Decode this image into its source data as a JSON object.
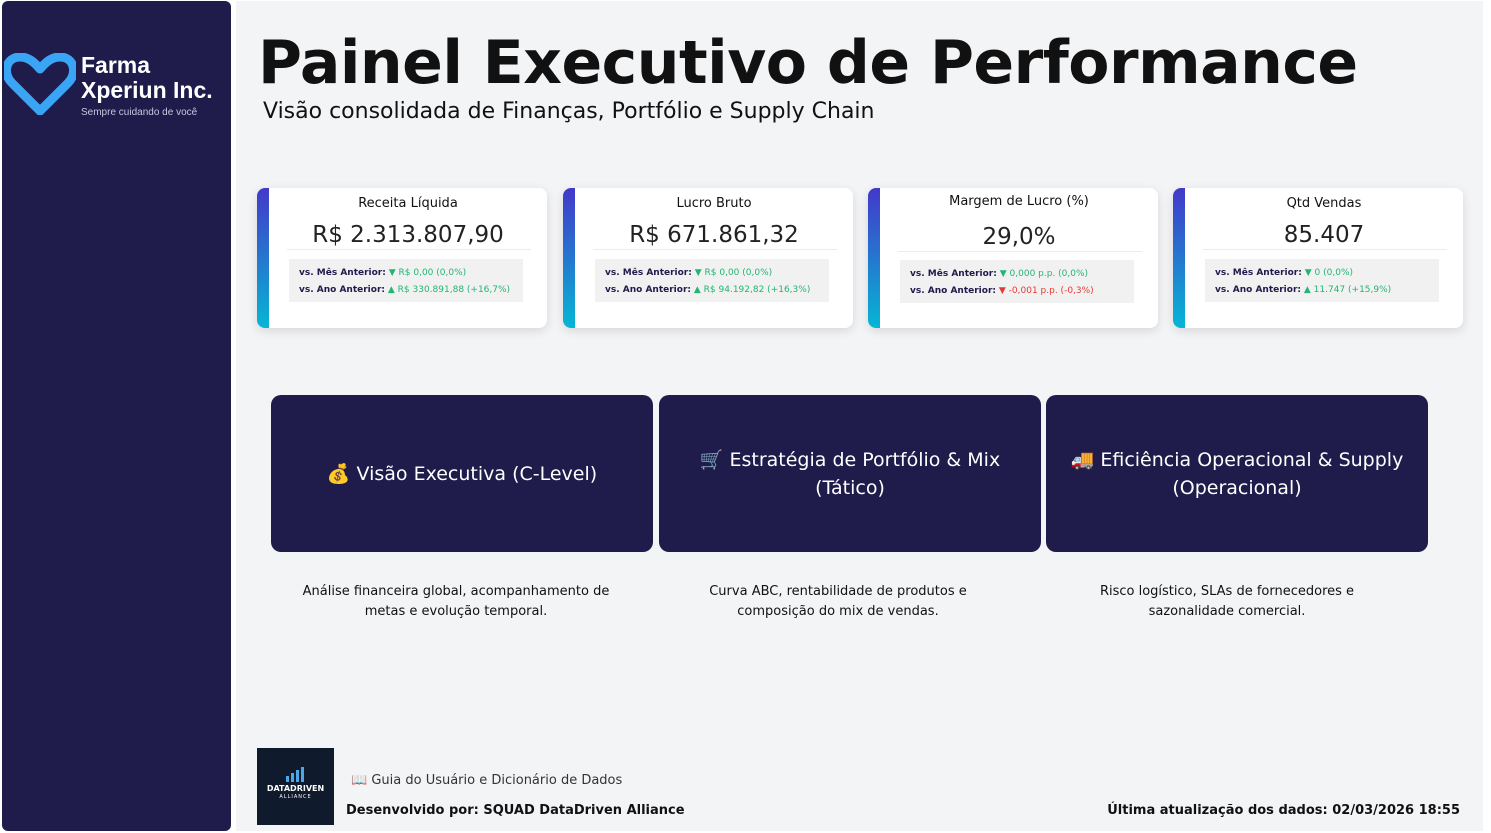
{
  "brand": {
    "line1": "Farma",
    "line2": "Xperiun Inc.",
    "tagline": "Sempre cuidando de você",
    "colors": {
      "sidebar": "#1f1b4b",
      "accent_top": "#4338ca",
      "accent_bottom": "#06b6d4",
      "heart": "#3aa4f5"
    }
  },
  "header": {
    "title": "Painel Executivo de Performance",
    "subtitle": "Visão consolidada de Finanças, Portfólio e Supply Chain"
  },
  "kpis": [
    {
      "name": "Receita Líquida",
      "value": "R$ 2.313.807,90",
      "mom_label": "vs. Mês Anterior:",
      "mom_arrow": "▼",
      "mom_value": "R$ 0,00 (0,0%)",
      "mom_trend": "up",
      "yoy_label": "vs. Ano Anterior:",
      "yoy_arrow": "▲",
      "yoy_value": "R$ 330.891,88 (+16,7%)",
      "yoy_trend": "up"
    },
    {
      "name": "Lucro Bruto",
      "value": "R$ 671.861,32",
      "mom_label": "vs. Mês Anterior:",
      "mom_arrow": "▼",
      "mom_value": "R$ 0,00 (0,0%)",
      "mom_trend": "up",
      "yoy_label": "vs. Ano Anterior:",
      "yoy_arrow": "▲",
      "yoy_value": "R$ 94.192,82 (+16,3%)",
      "yoy_trend": "up"
    },
    {
      "name": "Margem de Lucro (%)",
      "value": "29,0%",
      "mom_label": "vs. Mês Anterior:",
      "mom_arrow": "▼",
      "mom_value": "0,000 p.p. (0,0%)",
      "mom_trend": "up",
      "yoy_label": "vs. Ano Anterior:",
      "yoy_arrow": "▼",
      "yoy_value": "-0,001 p.p. (-0,3%)",
      "yoy_trend": "down"
    },
    {
      "name": "Qtd Vendas",
      "value": "85.407",
      "mom_label": "vs. Mês Anterior:",
      "mom_arrow": "▼",
      "mom_value": "0 (0,0%)",
      "mom_trend": "up",
      "yoy_label": "vs. Ano Anterior:",
      "yoy_arrow": "▲",
      "yoy_value": "11.747 (+15,9%)",
      "yoy_trend": "up"
    }
  ],
  "nav": [
    {
      "icon": "💰",
      "label": "Visão Executiva (C-Level)",
      "description": "Análise financeira global, acompanhamento de metas e evolução temporal."
    },
    {
      "icon": "🛒",
      "label": "Estratégia de Portfólio & Mix (Tático)",
      "description": "Curva ABC, rentabilidade de produtos e composição do mix de vendas."
    },
    {
      "icon": "🚚",
      "label": "Eficiência Operacional & Supply (Operacional)",
      "description": "Risco logístico, SLAs de fornecedores e sazonalidade comercial."
    }
  ],
  "footer": {
    "logo_line1": "DATADRIVEN",
    "logo_line2": "ALLIANCE",
    "guide_icon": "📖",
    "guide_label": "Guia do Usuário e Dicionário de Dados",
    "developer": "Desenvolvido por: SQUAD DataDriven Alliance",
    "last_update": "Última atualização dos dados: 02/03/2026 18:55"
  }
}
